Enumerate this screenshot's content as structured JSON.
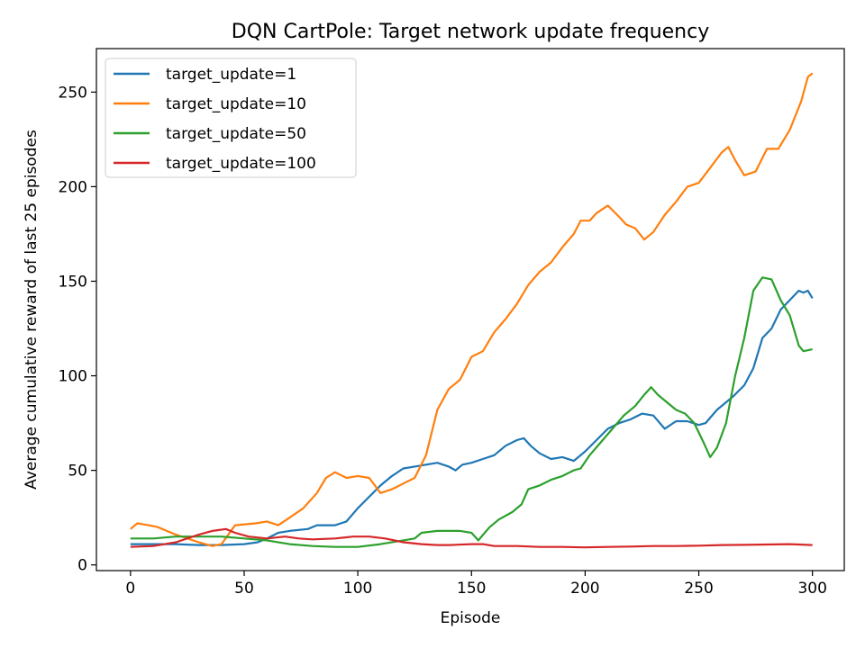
{
  "chart_data": {
    "type": "line",
    "title": "DQN CartPole: Target network update frequency",
    "xlabel": "Episode",
    "ylabel": "Average cumulative reward of last 25 episodes",
    "xlim": [
      -15,
      314
    ],
    "ylim": [
      -3,
      273
    ],
    "xticks": [
      0,
      50,
      100,
      150,
      200,
      250,
      300
    ],
    "yticks": [
      0,
      50,
      100,
      150,
      200,
      250
    ],
    "grid": false,
    "legend_position": "top-left",
    "series": [
      {
        "name": "target_update=1",
        "color": "#1f77b4",
        "points": [
          [
            0,
            11
          ],
          [
            10,
            11
          ],
          [
            20,
            11
          ],
          [
            30,
            10.5
          ],
          [
            40,
            10.5
          ],
          [
            50,
            11
          ],
          [
            56,
            12
          ],
          [
            60,
            14
          ],
          [
            65,
            17
          ],
          [
            70,
            18
          ],
          [
            78,
            19
          ],
          [
            82,
            21
          ],
          [
            90,
            21
          ],
          [
            95,
            23
          ],
          [
            100,
            30
          ],
          [
            105,
            36
          ],
          [
            110,
            42
          ],
          [
            115,
            47
          ],
          [
            120,
            51
          ],
          [
            125,
            52
          ],
          [
            130,
            53
          ],
          [
            135,
            54
          ],
          [
            140,
            52
          ],
          [
            143,
            50
          ],
          [
            146,
            53
          ],
          [
            150,
            54
          ],
          [
            155,
            56
          ],
          [
            160,
            58
          ],
          [
            165,
            63
          ],
          [
            170,
            66
          ],
          [
            173,
            67
          ],
          [
            176,
            63
          ],
          [
            180,
            59
          ],
          [
            185,
            56
          ],
          [
            190,
            57
          ],
          [
            195,
            55
          ],
          [
            200,
            60
          ],
          [
            205,
            66
          ],
          [
            210,
            72
          ],
          [
            215,
            75
          ],
          [
            220,
            77
          ],
          [
            225,
            80
          ],
          [
            230,
            79
          ],
          [
            235,
            72
          ],
          [
            240,
            76
          ],
          [
            245,
            76
          ],
          [
            250,
            74
          ],
          [
            253,
            75
          ],
          [
            258,
            82
          ],
          [
            262,
            86
          ],
          [
            265,
            89
          ],
          [
            270,
            95
          ],
          [
            274,
            104
          ],
          [
            278,
            120
          ],
          [
            282,
            125
          ],
          [
            286,
            135
          ],
          [
            290,
            140
          ],
          [
            294,
            145
          ],
          [
            296,
            144
          ],
          [
            298,
            145
          ],
          [
            300,
            141
          ]
        ]
      },
      {
        "name": "target_update=10",
        "color": "#ff7f0e",
        "points": [
          [
            0,
            19
          ],
          [
            3,
            22
          ],
          [
            8,
            21
          ],
          [
            12,
            20
          ],
          [
            20,
            16
          ],
          [
            30,
            12
          ],
          [
            36,
            10
          ],
          [
            40,
            11
          ],
          [
            46,
            21
          ],
          [
            55,
            22
          ],
          [
            60,
            23
          ],
          [
            65,
            21
          ],
          [
            70,
            25
          ],
          [
            76,
            30
          ],
          [
            82,
            38
          ],
          [
            86,
            46
          ],
          [
            90,
            49
          ],
          [
            95,
            46
          ],
          [
            100,
            47
          ],
          [
            105,
            46
          ],
          [
            110,
            38
          ],
          [
            115,
            40
          ],
          [
            120,
            43
          ],
          [
            125,
            46
          ],
          [
            130,
            58
          ],
          [
            135,
            82
          ],
          [
            140,
            93
          ],
          [
            145,
            98
          ],
          [
            150,
            110
          ],
          [
            155,
            113
          ],
          [
            160,
            123
          ],
          [
            165,
            130
          ],
          [
            170,
            138
          ],
          [
            175,
            148
          ],
          [
            180,
            155
          ],
          [
            185,
            160
          ],
          [
            190,
            168
          ],
          [
            195,
            175
          ],
          [
            198,
            182
          ],
          [
            202,
            182
          ],
          [
            205,
            186
          ],
          [
            210,
            190
          ],
          [
            215,
            184
          ],
          [
            218,
            180
          ],
          [
            222,
            178
          ],
          [
            226,
            172
          ],
          [
            230,
            176
          ],
          [
            235,
            185
          ],
          [
            240,
            192
          ],
          [
            245,
            200
          ],
          [
            250,
            202
          ],
          [
            255,
            210
          ],
          [
            260,
            218
          ],
          [
            263,
            221
          ],
          [
            266,
            214
          ],
          [
            270,
            206
          ],
          [
            275,
            208
          ],
          [
            280,
            220
          ],
          [
            285,
            220
          ],
          [
            290,
            230
          ],
          [
            295,
            245
          ],
          [
            298,
            258
          ],
          [
            300,
            260
          ]
        ]
      },
      {
        "name": "target_update=50",
        "color": "#2ca02c",
        "points": [
          [
            0,
            14
          ],
          [
            10,
            14
          ],
          [
            20,
            15
          ],
          [
            30,
            15
          ],
          [
            40,
            15
          ],
          [
            50,
            14
          ],
          [
            60,
            13
          ],
          [
            70,
            11
          ],
          [
            80,
            10
          ],
          [
            90,
            9.5
          ],
          [
            100,
            9.5
          ],
          [
            110,
            11
          ],
          [
            120,
            13
          ],
          [
            125,
            14
          ],
          [
            128,
            17
          ],
          [
            135,
            18
          ],
          [
            140,
            18
          ],
          [
            145,
            18
          ],
          [
            150,
            17
          ],
          [
            153,
            13
          ],
          [
            158,
            20
          ],
          [
            162,
            24
          ],
          [
            168,
            28
          ],
          [
            172,
            32
          ],
          [
            175,
            40
          ],
          [
            180,
            42
          ],
          [
            185,
            45
          ],
          [
            190,
            47
          ],
          [
            195,
            50
          ],
          [
            198,
            51
          ],
          [
            202,
            58
          ],
          [
            207,
            65
          ],
          [
            212,
            72
          ],
          [
            217,
            79
          ],
          [
            222,
            84
          ],
          [
            226,
            90
          ],
          [
            229,
            94
          ],
          [
            232,
            90
          ],
          [
            236,
            86
          ],
          [
            240,
            82
          ],
          [
            244,
            80
          ],
          [
            248,
            75
          ],
          [
            252,
            65
          ],
          [
            255,
            57
          ],
          [
            258,
            62
          ],
          [
            262,
            75
          ],
          [
            266,
            100
          ],
          [
            270,
            120
          ],
          [
            274,
            145
          ],
          [
            278,
            152
          ],
          [
            282,
            151
          ],
          [
            286,
            140
          ],
          [
            290,
            132
          ],
          [
            294,
            116
          ],
          [
            296,
            113
          ],
          [
            300,
            114
          ]
        ]
      },
      {
        "name": "target_update=100",
        "color": "#d62728",
        "points": [
          [
            0,
            9.5
          ],
          [
            10,
            10
          ],
          [
            20,
            12
          ],
          [
            30,
            16
          ],
          [
            36,
            18
          ],
          [
            42,
            19
          ],
          [
            46,
            17
          ],
          [
            52,
            15
          ],
          [
            60,
            14
          ],
          [
            68,
            15
          ],
          [
            74,
            14
          ],
          [
            80,
            13.5
          ],
          [
            90,
            14
          ],
          [
            98,
            15
          ],
          [
            105,
            15
          ],
          [
            112,
            14
          ],
          [
            120,
            12
          ],
          [
            128,
            11
          ],
          [
            135,
            10.5
          ],
          [
            140,
            10.5
          ],
          [
            150,
            11
          ],
          [
            155,
            11
          ],
          [
            160,
            10
          ],
          [
            170,
            10
          ],
          [
            180,
            9.5
          ],
          [
            190,
            9.5
          ],
          [
            200,
            9.3
          ],
          [
            210,
            9.5
          ],
          [
            220,
            9.7
          ],
          [
            230,
            10
          ],
          [
            240,
            10
          ],
          [
            250,
            10.2
          ],
          [
            260,
            10.5
          ],
          [
            270,
            10.6
          ],
          [
            280,
            10.8
          ],
          [
            290,
            11
          ],
          [
            300,
            10.5
          ]
        ]
      }
    ]
  }
}
